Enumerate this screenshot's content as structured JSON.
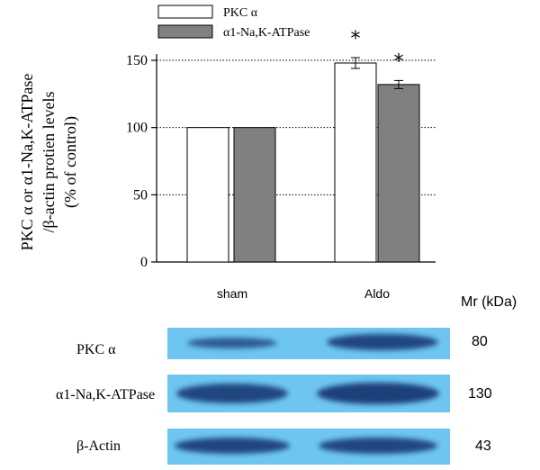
{
  "chart_data": {
    "type": "bar",
    "categories": [
      "sham",
      "Aldo"
    ],
    "series": [
      {
        "name": "PKC α",
        "values": [
          100,
          148
        ],
        "errors": [
          0,
          4
        ],
        "color": "#ffffff"
      },
      {
        "name": "α1-Na,K-ATPase",
        "values": [
          100,
          132
        ],
        "errors": [
          0,
          3
        ],
        "color": "#808080"
      }
    ],
    "ylabel_lines": [
      "PKC α or α1-Na,K-ATPase",
      "/β-actin protien levels",
      "(% of control)"
    ],
    "ylim": [
      0,
      150
    ],
    "yticks": [
      "0",
      "50",
      "100",
      "150"
    ],
    "significance_marker": "*",
    "grid": "horizontal dotted",
    "legend_position": "top-left"
  },
  "blot": {
    "mr_header": "Mr (kDa)",
    "rows": [
      {
        "label": "PKC α",
        "mr": "80"
      },
      {
        "label": "α1-Na,K-ATPase",
        "mr": "130"
      },
      {
        "label": "β-Actin",
        "mr": "43"
      }
    ],
    "background_color": "#6ec6f0",
    "band_color": "#1d3f7a"
  }
}
